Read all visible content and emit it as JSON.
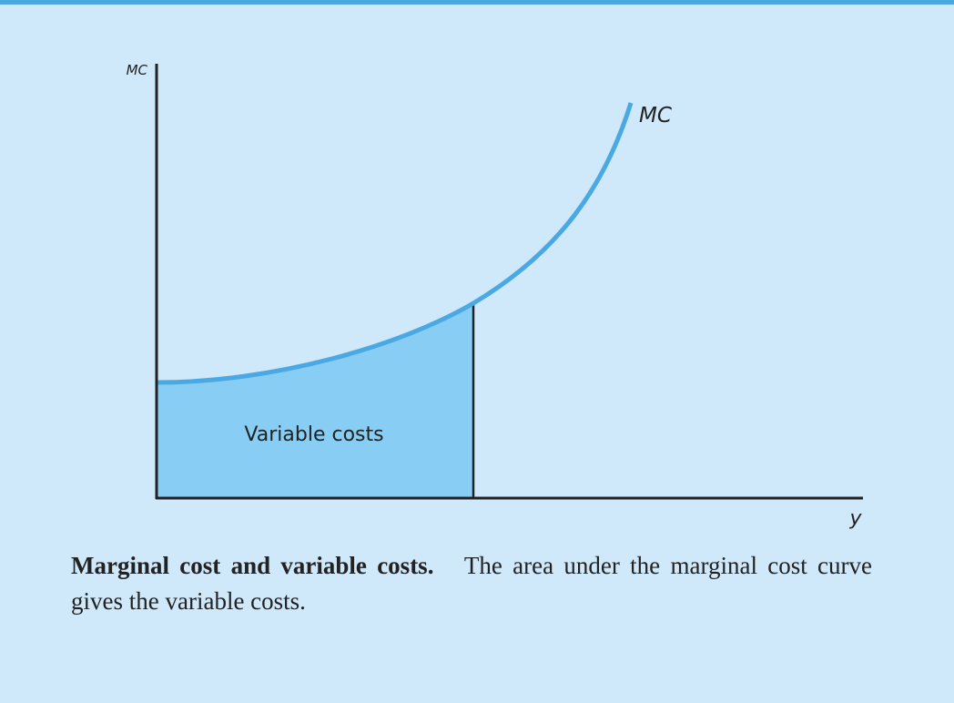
{
  "axes": {
    "y_label": "MC",
    "x_label": "y"
  },
  "curve": {
    "label": "MC"
  },
  "area": {
    "label": "Variable costs"
  },
  "caption": {
    "title": "Marginal cost and variable costs.",
    "text": "The area under the marginal cost curve gives the variable costs."
  }
}
